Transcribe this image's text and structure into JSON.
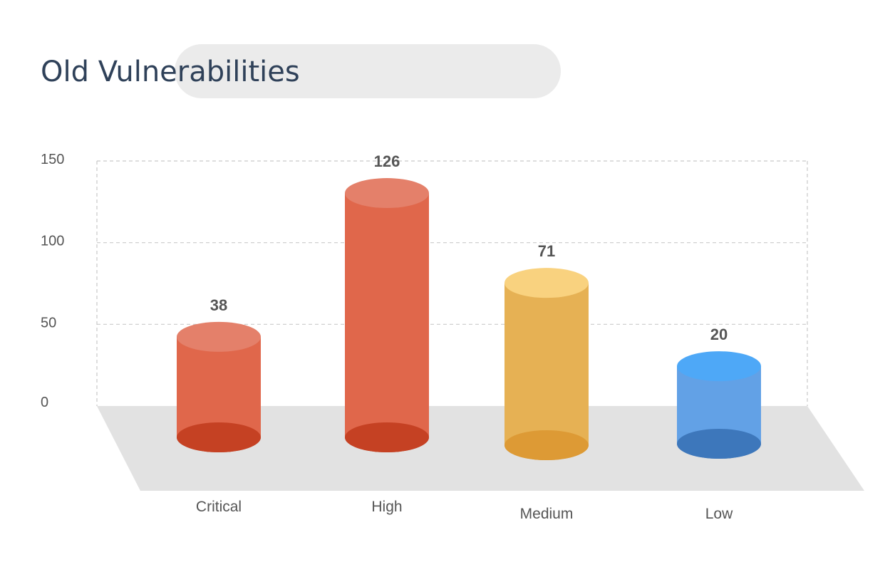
{
  "title": "Old Vulnerabilities",
  "colors": {
    "title": "#2f4159",
    "title_pill": "#ebebeb",
    "floor": "#e2e2e2",
    "grid": "#c9c9c9",
    "text": "#555555"
  },
  "chart_data": {
    "type": "bar",
    "style": "3d-cylinder",
    "title": "Old Vulnerabilities",
    "categories": [
      "Critical",
      "High",
      "Medium",
      "Low"
    ],
    "values": [
      38,
      126,
      71,
      20
    ],
    "ylim": [
      0,
      150
    ],
    "yticks": [
      0,
      50,
      100,
      150
    ],
    "ytick_labels": [
      "0",
      "50",
      "100",
      "150"
    ],
    "xlabel": "",
    "ylabel": "",
    "grid": true,
    "legend": "none",
    "bar_colors": [
      {
        "body": "#e0674b",
        "top": "#e4806a",
        "base": "#c54123"
      },
      {
        "body": "#e0674b",
        "top": "#e4806a",
        "base": "#c54123"
      },
      {
        "body": "#e6b154",
        "top": "#f9d27f",
        "base": "#dd9a35"
      },
      {
        "body": "#62a1e6",
        "top": "#4ea8f7",
        "base": "#3d77bb"
      }
    ]
  }
}
